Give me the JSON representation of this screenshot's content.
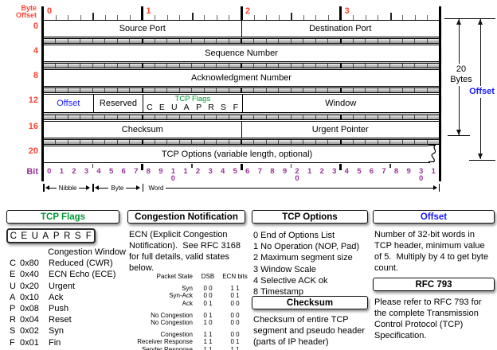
{
  "colors": {
    "red": "#ff4433",
    "purple": "#993399",
    "green": "#009933",
    "blue": "#1a1aff"
  },
  "diagram": {
    "byte_offset_label_line1": "Byte",
    "byte_offset_label_line2": "Offset",
    "byte_numbers": [
      "0",
      "1",
      "2",
      "3"
    ],
    "row_byte_labels": [
      "0",
      "4",
      "8",
      "12",
      "16",
      "20"
    ],
    "bit_axis_label": "Bit",
    "bit_numbers": [
      0,
      1,
      2,
      3,
      4,
      5,
      6,
      7,
      8,
      9,
      10,
      11,
      12,
      13,
      14,
      15,
      16,
      17,
      18,
      19,
      20,
      21,
      22,
      23,
      24,
      25,
      26,
      27,
      28,
      29,
      30,
      31
    ],
    "fields": {
      "source_port": "Source Port",
      "destination_port": "Destination Port",
      "sequence_number": "Sequence Number",
      "acknowledgment_number": "Acknowledgment Number",
      "offset": "Offset",
      "reserved": "Reserved",
      "tcp_flags_title": "TCP Flags",
      "flag_letters": [
        "C",
        "E",
        "U",
        "A",
        "P",
        "R",
        "S",
        "F"
      ],
      "window": "Window",
      "checksum": "Checksum",
      "urgent_pointer": "Urgent Pointer",
      "tcp_options": "TCP Options (variable length, optional)"
    },
    "measures": {
      "nibble": "Nibble",
      "byte": "Byte",
      "word": "Word"
    },
    "annotations": {
      "bytes_line1": "20",
      "bytes_line2": "Bytes",
      "offset_label": "Offset"
    }
  },
  "panels": {
    "tcp_flags": {
      "title": "TCP Flags",
      "letters": [
        "C",
        "E",
        "U",
        "A",
        "P",
        "R",
        "S",
        "F"
      ],
      "items": [
        {
          "letter": "",
          "hex": "",
          "name": "Congestion Window"
        },
        {
          "letter": "C",
          "hex": "0x80",
          "name": "Reduced (CWR)"
        },
        {
          "letter": "E",
          "hex": "0x40",
          "name": "ECN Echo (ECE)"
        },
        {
          "letter": "U",
          "hex": "0x20",
          "name": "Urgent"
        },
        {
          "letter": "A",
          "hex": "0x10",
          "name": "Ack"
        },
        {
          "letter": "P",
          "hex": "0x08",
          "name": "Push"
        },
        {
          "letter": "R",
          "hex": "0x04",
          "name": "Reset"
        },
        {
          "letter": "S",
          "hex": "0x02",
          "name": "Syn"
        },
        {
          "letter": "F",
          "hex": "0x01",
          "name": "Fin"
        }
      ]
    },
    "congestion": {
      "title": "Congestion Notification",
      "paragraph": "ECN (Explicit Congestion Notification).  See RFC 3168 for full details, valid states below.",
      "table": {
        "headers": [
          "Packet State",
          "DSB",
          "ECN bits"
        ],
        "groups": [
          {
            "rows": [
              [
                "Syn",
                "0 0",
                "1 1"
              ],
              [
                "Syn-Ack",
                "0 0",
                "0 1"
              ],
              [
                "Ack",
                "0 1",
                "0 0"
              ]
            ]
          },
          {
            "rows": [
              [
                "No Congestion",
                "0 1",
                "0 0"
              ],
              [
                "No Congestion",
                "1 0",
                "0 0"
              ]
            ]
          },
          {
            "rows": [
              [
                "Congestion",
                "1 1",
                "0 0"
              ],
              [
                "Receiver Response",
                "1 1",
                "0 1"
              ],
              [
                "Sender Response",
                "1 1",
                "1 1"
              ]
            ]
          }
        ]
      }
    },
    "tcp_options": {
      "title": "TCP Options",
      "items": [
        {
          "code": "0",
          "label": "End of Options List"
        },
        {
          "code": "1",
          "label": "No Operation (NOP, Pad)"
        },
        {
          "code": "2",
          "label": "Maximum segment size"
        },
        {
          "code": "3",
          "label": "Window Scale"
        },
        {
          "code": "4",
          "label": "Selective ACK ok"
        },
        {
          "code": "8",
          "label": "Timestamp"
        }
      ]
    },
    "checksum": {
      "title": "Checksum",
      "paragraph": "Checksum of entire TCP segment and pseudo header (parts of IP header)"
    },
    "offset": {
      "title": "Offset",
      "paragraph": "Number of 32-bit words in TCP header, minimum value of 5.  Multiply by 4 to get byte count."
    },
    "rfc": {
      "title": "RFC 793",
      "paragraph": "Please refer to RFC 793 for the complete Transmission Control Protocol (TCP) Specification."
    }
  }
}
